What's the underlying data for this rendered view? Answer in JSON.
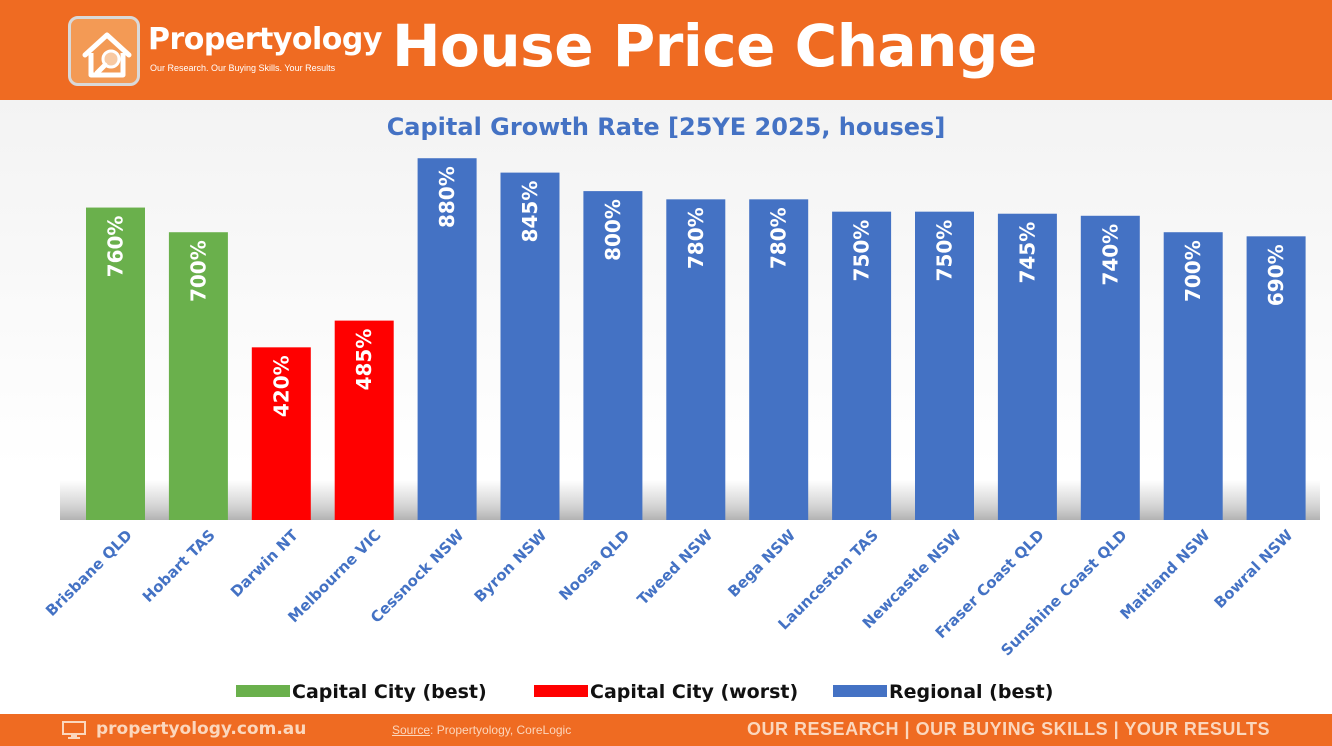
{
  "header": {
    "brand_name": "Propertyology",
    "brand_tagline": "Our Research. Our Buying Skills. Your Results",
    "title": "House Price Change",
    "accent_color": "#ef6b22"
  },
  "chart_data": {
    "type": "bar",
    "title": "Capital Growth Rate [25YE 2025, houses]",
    "xlabel": "",
    "ylabel": "",
    "ylim": [
      0,
      900
    ],
    "grid": false,
    "legend_position": "bottom",
    "categories": [
      "Brisbane QLD",
      "Hobart TAS",
      "Darwin NT",
      "Melbourne VIC",
      "Cessnock NSW",
      "Byron NSW",
      "Noosa QLD",
      "Tweed NSW",
      "Bega NSW",
      "Launceston TAS",
      "Newcastle NSW",
      "Fraser Coast QLD",
      "Sunshine Coast QLD",
      "Maitland NSW",
      "Bowral NSW"
    ],
    "values": [
      760,
      700,
      420,
      485,
      880,
      845,
      800,
      780,
      780,
      750,
      750,
      745,
      740,
      700,
      690
    ],
    "value_labels": [
      "760%",
      "700%",
      "420%",
      "485%",
      "880%",
      "845%",
      "800%",
      "780%",
      "780%",
      "750%",
      "750%",
      "745%",
      "740%",
      "700%",
      "690%"
    ],
    "groups": [
      0,
      0,
      1,
      1,
      2,
      2,
      2,
      2,
      2,
      2,
      2,
      2,
      2,
      2,
      2
    ],
    "series": [
      {
        "name": "Capital City (best)",
        "color": "#6ab04c"
      },
      {
        "name": "Capital City (worst)",
        "color": "#ff0000"
      },
      {
        "name": "Regional (best)",
        "color": "#4472c4"
      }
    ]
  },
  "footer": {
    "website": "propertyology.com.au",
    "source_label": "Source",
    "source_text": ": Propertyology, CoreLogic",
    "slogan": "OUR RESEARCH | OUR BUYING SKILLS | YOUR RESULTS"
  }
}
